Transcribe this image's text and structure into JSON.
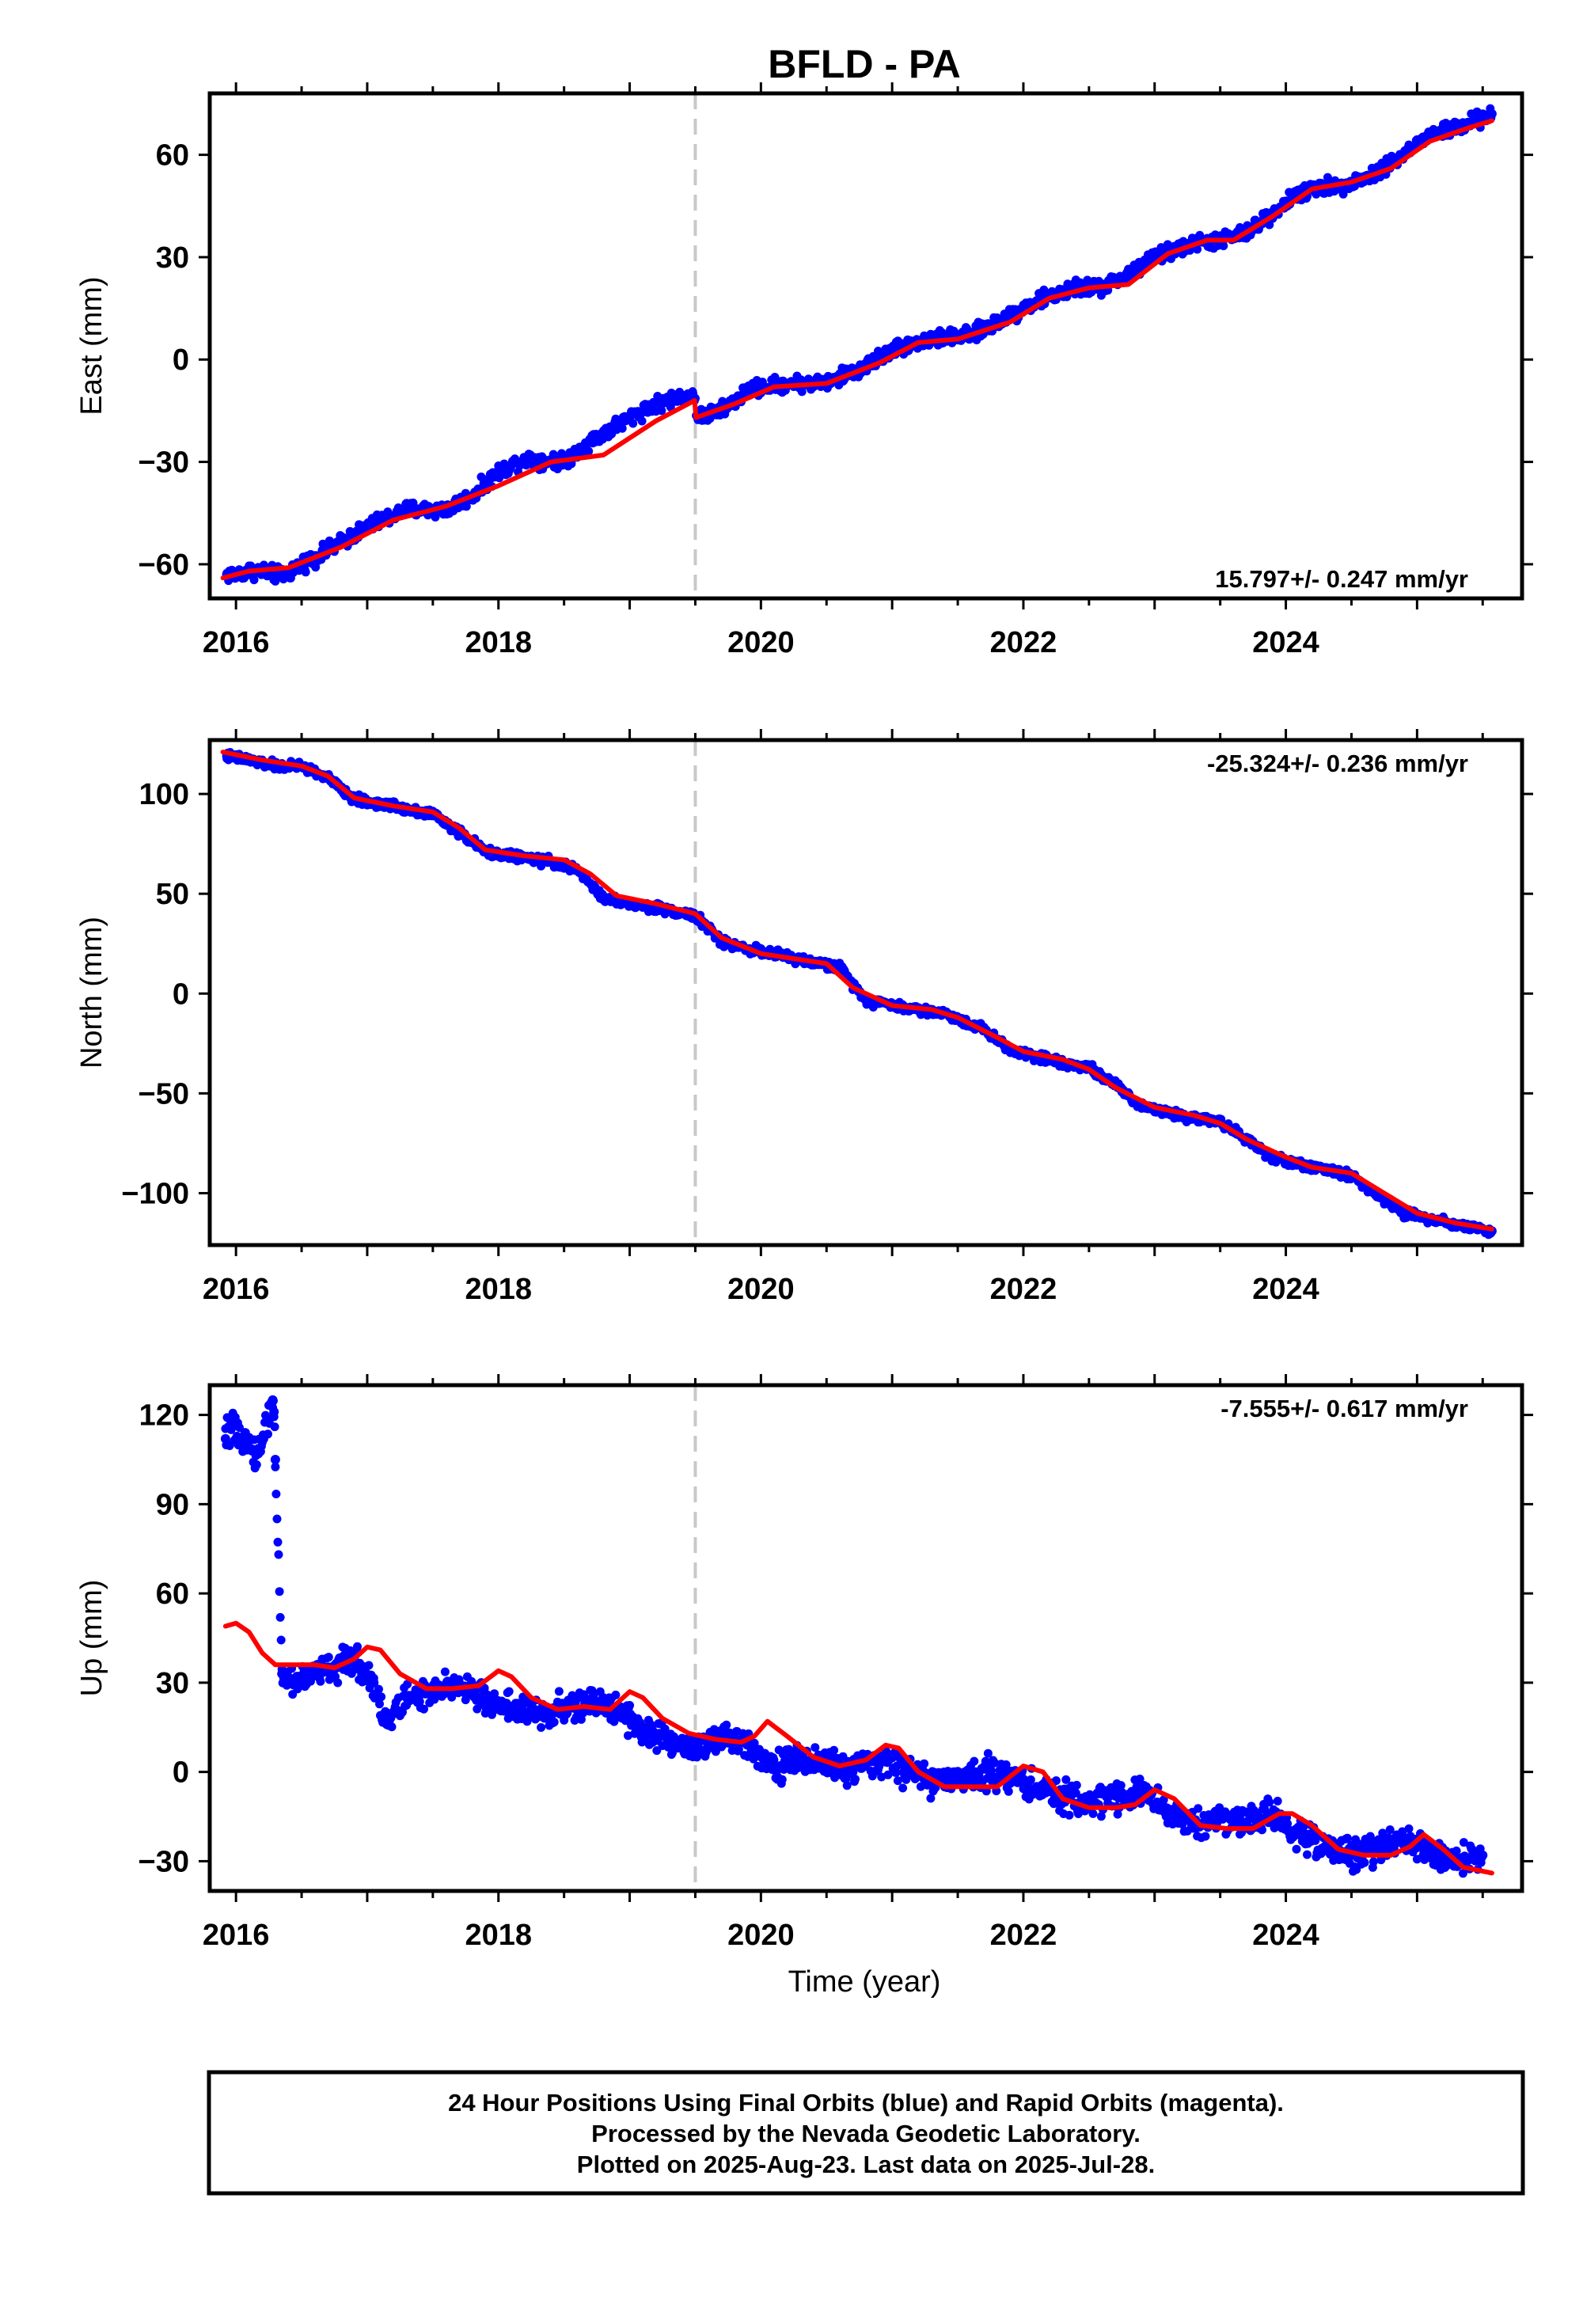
{
  "title": "BFLD - PA",
  "xlabel": "Time (year)",
  "colors": {
    "final_orbits": "#0000ff",
    "model_fit": "#ff0000",
    "offset_line": "#c8c8c8"
  },
  "chart_data": [
    {
      "type": "scatter",
      "panel": "east",
      "ylabel": "East (mm)",
      "rate": "15.797+/- 0.247 mm/yr",
      "rate_placement": "bottom-right",
      "xlim": [
        2015.8,
        2025.8
      ],
      "ylim": [
        -70,
        78
      ],
      "x_ticks": [
        2016,
        2018,
        2020,
        2022,
        2024
      ],
      "y_ticks": [
        -60,
        -30,
        0,
        30,
        60
      ],
      "offset_epochs": [
        2019.5
      ],
      "series": [
        {
          "style": "points",
          "x": [
            2015.93,
            2016.0,
            2016.1,
            2016.2,
            2016.3,
            2016.38,
            2016.5,
            2016.7,
            2017.0,
            2017.3,
            2017.6,
            2017.8,
            2018.0,
            2018.2,
            2018.5,
            2018.7,
            2019.0,
            2019.2,
            2019.48,
            2019.52,
            2019.7,
            2019.9,
            2020.2,
            2020.5,
            2020.8,
            2021.0,
            2021.3,
            2021.6,
            2021.9,
            2022.1,
            2022.4,
            2022.6,
            2022.8,
            2023.0,
            2023.3,
            2023.5,
            2023.7,
            2023.9,
            2024.1,
            2024.4,
            2024.6,
            2024.9,
            2025.1,
            2025.4,
            2025.57
          ],
          "y": [
            -63,
            -63,
            -62,
            -62,
            -63,
            -63,
            -60,
            -56,
            -49,
            -44,
            -44,
            -40,
            -33,
            -29,
            -30,
            -24,
            -17,
            -13,
            -10,
            -17,
            -15,
            -9,
            -7,
            -7,
            -2,
            3,
            6,
            7,
            13,
            17,
            21,
            21,
            25,
            30,
            34,
            35,
            37,
            43,
            49,
            51,
            53,
            60,
            66,
            69,
            72
          ]
        },
        {
          "style": "line",
          "x": [
            2015.9,
            2016.1,
            2016.4,
            2016.8,
            2017.2,
            2017.6,
            2018.0,
            2018.4,
            2018.8,
            2019.2,
            2019.495,
            2019.505,
            2019.8,
            2020.1,
            2020.5,
            2020.9,
            2021.2,
            2021.5,
            2021.9,
            2022.2,
            2022.5,
            2022.8,
            2023.1,
            2023.4,
            2023.6,
            2023.9,
            2024.2,
            2024.5,
            2024.8,
            2025.1,
            2025.4,
            2025.57
          ],
          "y": [
            -64,
            -62,
            -61,
            -55,
            -47,
            -43,
            -37,
            -30,
            -28,
            -18,
            -12,
            -17,
            -13,
            -8,
            -7,
            -1,
            5,
            6,
            11,
            18,
            21,
            22,
            31,
            35,
            35,
            42,
            50,
            52,
            56,
            64,
            68,
            70
          ]
        }
      ]
    },
    {
      "type": "scatter",
      "panel": "north",
      "ylabel": "North (mm)",
      "rate": "-25.324+/- 0.236 mm/yr",
      "rate_placement": "top-right",
      "xlim": [
        2015.8,
        2025.8
      ],
      "ylim": [
        -126,
        127
      ],
      "x_ticks": [
        2016,
        2018,
        2020,
        2022,
        2024
      ],
      "y_ticks": [
        -100,
        -50,
        0,
        50,
        100
      ],
      "offset_epochs": [
        2019.5
      ],
      "series": [
        {
          "style": "points",
          "x": [
            2015.93,
            2016.1,
            2016.3,
            2016.5,
            2016.7,
            2016.9,
            2017.2,
            2017.5,
            2017.7,
            2017.9,
            2018.1,
            2018.4,
            2018.6,
            2018.8,
            2019.0,
            2019.3,
            2019.5,
            2019.7,
            2020.0,
            2020.3,
            2020.6,
            2020.8,
            2021.1,
            2021.4,
            2021.7,
            2021.9,
            2022.2,
            2022.5,
            2022.7,
            2022.9,
            2023.2,
            2023.5,
            2023.7,
            2023.9,
            2024.2,
            2024.5,
            2024.7,
            2024.9,
            2025.2,
            2025.4,
            2025.57
          ],
          "y": [
            119,
            117,
            114,
            114,
            108,
            97,
            94,
            90,
            81,
            71,
            69,
            66,
            62,
            48,
            45,
            42,
            39,
            26,
            21,
            17,
            13,
            -3,
            -7,
            -10,
            -18,
            -28,
            -33,
            -37,
            -46,
            -56,
            -61,
            -64,
            -73,
            -82,
            -87,
            -91,
            -101,
            -110,
            -114,
            -117,
            -119
          ]
        },
        {
          "style": "line",
          "x": [
            2015.9,
            2016.2,
            2016.5,
            2016.7,
            2016.9,
            2017.2,
            2017.5,
            2017.7,
            2017.9,
            2018.2,
            2018.5,
            2018.7,
            2018.9,
            2019.2,
            2019.5,
            2019.7,
            2020.0,
            2020.3,
            2020.5,
            2020.7,
            2021.0,
            2021.3,
            2021.5,
            2021.8,
            2022.0,
            2022.3,
            2022.5,
            2022.7,
            2023.0,
            2023.3,
            2023.5,
            2023.7,
            2024.0,
            2024.2,
            2024.5,
            2024.7,
            2025.0,
            2025.3,
            2025.57
          ],
          "y": [
            121,
            117,
            114,
            109,
            98,
            94,
            91,
            83,
            72,
            69,
            67,
            60,
            49,
            45,
            40,
            28,
            20,
            17,
            15,
            3,
            -6,
            -8,
            -12,
            -22,
            -29,
            -33,
            -38,
            -47,
            -57,
            -61,
            -65,
            -73,
            -82,
            -87,
            -90,
            -98,
            -110,
            -115,
            -118
          ]
        }
      ]
    },
    {
      "type": "scatter",
      "panel": "up",
      "ylabel": "Up (mm)",
      "rate": "-7.555+/- 0.617 mm/yr",
      "rate_placement": "top-right",
      "xlim": [
        2015.8,
        2025.8
      ],
      "ylim": [
        -40,
        130
      ],
      "x_ticks": [
        2016,
        2018,
        2020,
        2022,
        2024
      ],
      "y_ticks": [
        -30,
        0,
        30,
        60,
        90,
        120
      ],
      "offset_epochs": [
        2019.5
      ],
      "series": [
        {
          "style": "points",
          "x": [
            2015.92,
            2015.97,
            2016.02,
            2016.07,
            2016.12,
            2016.17,
            2016.28,
            2016.29,
            2016.3,
            2016.35,
            2016.45,
            2016.6,
            2016.75,
            2016.9,
            2017.05,
            2017.15,
            2017.3,
            2017.5,
            2017.7,
            2017.9,
            2018.1,
            2018.3,
            2018.5,
            2018.7,
            2018.9,
            2019.1,
            2019.3,
            2019.5,
            2019.7,
            2019.9,
            2020.1,
            2020.3,
            2020.5,
            2020.7,
            2020.9,
            2021.1,
            2021.3,
            2021.5,
            2021.7,
            2021.9,
            2022.1,
            2022.3,
            2022.5,
            2022.7,
            2022.9,
            2023.1,
            2023.3,
            2023.5,
            2023.7,
            2023.9,
            2024.1,
            2024.3,
            2024.5,
            2024.7,
            2024.9,
            2025.1,
            2025.3,
            2025.5
          ],
          "y": [
            112,
            116,
            110,
            114,
            108,
            107,
            125,
            121,
            105,
            33,
            30,
            33,
            35,
            38,
            30,
            16,
            25,
            26,
            30,
            24,
            22,
            19,
            21,
            23,
            22,
            14,
            10,
            8,
            11,
            10,
            2,
            4,
            3,
            0,
            4,
            1,
            -3,
            -3,
            1,
            -2,
            -5,
            -9,
            -10,
            -8,
            -7,
            -13,
            -18,
            -15,
            -17,
            -14,
            -21,
            -25,
            -28,
            -25,
            -22,
            -27,
            -30,
            -28
          ]
        },
        {
          "style": "line",
          "x": [
            2015.92,
            2016.0,
            2016.1,
            2016.2,
            2016.3,
            2016.45,
            2016.6,
            2016.75,
            2016.9,
            2017.0,
            2017.1,
            2017.25,
            2017.45,
            2017.65,
            2017.85,
            2018.0,
            2018.1,
            2018.25,
            2018.45,
            2018.65,
            2018.85,
            2019.0,
            2019.1,
            2019.25,
            2019.45,
            2019.65,
            2019.85,
            2019.95,
            2020.05,
            2020.2,
            2020.4,
            2020.6,
            2020.8,
            2020.95,
            2021.05,
            2021.2,
            2021.4,
            2021.6,
            2021.8,
            2022.0,
            2022.15,
            2022.3,
            2022.5,
            2022.7,
            2022.85,
            2023.0,
            2023.15,
            2023.35,
            2023.55,
            2023.75,
            2023.95,
            2024.05,
            2024.2,
            2024.4,
            2024.6,
            2024.8,
            2024.95,
            2025.05,
            2025.2,
            2025.35,
            2025.57
          ],
          "y": [
            49,
            50,
            47,
            40,
            36,
            36,
            36,
            35,
            38,
            42,
            41,
            33,
            28,
            28,
            29,
            34,
            32,
            25,
            21,
            22,
            21,
            27,
            25,
            18,
            13,
            11,
            10,
            12,
            17,
            12,
            5,
            2,
            4,
            9,
            8,
            0,
            -5,
            -5,
            -5,
            2,
            0,
            -9,
            -12,
            -12,
            -11,
            -6,
            -9,
            -18,
            -19,
            -19,
            -14,
            -14,
            -18,
            -26,
            -28,
            -28,
            -25,
            -21,
            -26,
            -32,
            -34
          ]
        }
      ]
    }
  ],
  "footnote": {
    "line1": "24 Hour Positions Using Final Orbits (blue) and Rapid Orbits (magenta).",
    "line2": "Processed by the Nevada Geodetic Laboratory.",
    "line3": "Plotted on 2025-Aug-23. Last data on 2025-Jul-28."
  }
}
